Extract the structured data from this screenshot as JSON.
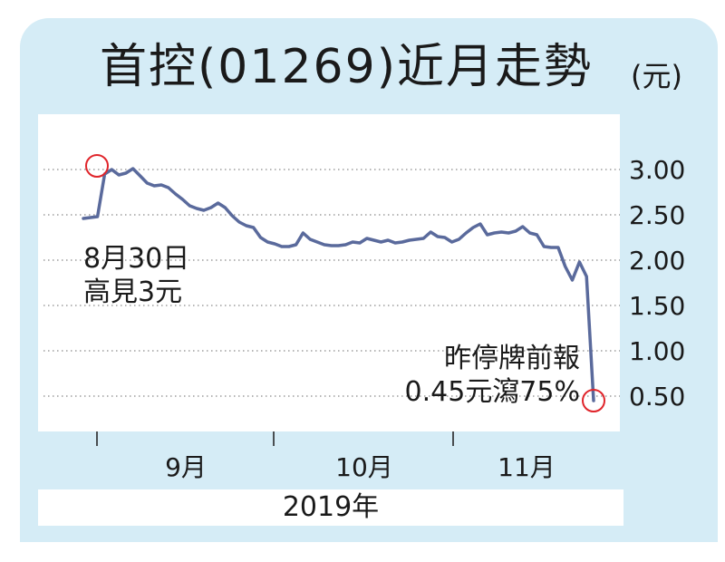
{
  "title": "首控(01269)近月走勢",
  "unit": "(元)",
  "colors": {
    "background": "#d5ecf6",
    "plot": "#ffffff",
    "line": "#5a6a9c",
    "marker": "#e0252b"
  },
  "annotations": {
    "high_line1": "8月30日",
    "high_line2": "高見3元",
    "low_line1": "昨停牌前報",
    "low_line2": "0.45元瀉75%"
  },
  "chart_data": {
    "type": "line",
    "title": "首控(01269)近月走勢",
    "ylabel": "(元)",
    "xlabel": "2019年",
    "ylim": [
      0.2,
      3.6
    ],
    "y_ticks": [
      "3.00",
      "2.50",
      "2.00",
      "1.50",
      "1.00",
      "0.50"
    ],
    "y_tick_values": [
      3.0,
      2.5,
      2.0,
      1.5,
      1.0,
      0.5
    ],
    "x_month_labels": [
      "9月",
      "10月",
      "11月"
    ],
    "x_label": "2019年",
    "grid": true,
    "series": [
      {
        "values": [
          2.46,
          2.47,
          2.48,
          2.95,
          3.0,
          2.94,
          2.96,
          3.01,
          2.93,
          2.85,
          2.82,
          2.83,
          2.8,
          2.73,
          2.67,
          2.6,
          2.57,
          2.55,
          2.58,
          2.63,
          2.58,
          2.49,
          2.42,
          2.38,
          2.36,
          2.25,
          2.2,
          2.18,
          2.15,
          2.15,
          2.17,
          2.3,
          2.23,
          2.2,
          2.17,
          2.16,
          2.16,
          2.17,
          2.2,
          2.19,
          2.24,
          2.22,
          2.2,
          2.22,
          2.19,
          2.2,
          2.22,
          2.23,
          2.24,
          2.31,
          2.26,
          2.25,
          2.2,
          2.23,
          2.3,
          2.36,
          2.4,
          2.28,
          2.3,
          2.31,
          2.3,
          2.32,
          2.37,
          2.3,
          2.28,
          2.15,
          2.14,
          2.14,
          1.93,
          1.78,
          1.98,
          1.82,
          0.45
        ]
      }
    ],
    "high_point": {
      "label": "8月30日",
      "value": 3.0
    },
    "low_point": {
      "value": 0.45
    }
  }
}
